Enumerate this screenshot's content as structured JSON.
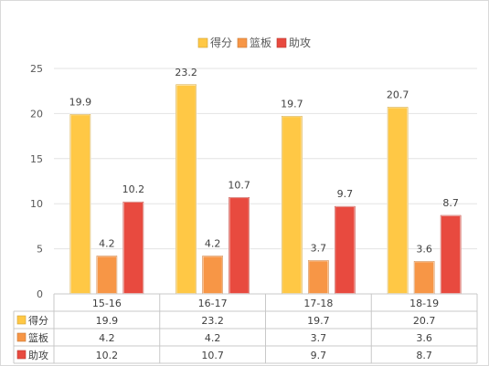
{
  "chart_data": {
    "type": "bar",
    "title": "",
    "xlabel": "",
    "ylabel": "",
    "ylim": [
      0,
      25
    ],
    "yticks": [
      0,
      5,
      10,
      15,
      20,
      25
    ],
    "grid": true,
    "legend_position": "top",
    "categories": [
      "15-16",
      "16-17",
      "17-18",
      "18-19"
    ],
    "series": [
      {
        "name": "得分",
        "color": "#ffc845",
        "values": [
          19.9,
          23.2,
          19.7,
          20.7
        ]
      },
      {
        "name": "篮板",
        "color": "#f79646",
        "values": [
          4.2,
          4.2,
          3.7,
          3.6
        ]
      },
      {
        "name": "助攻",
        "color": "#e84a3f",
        "values": [
          10.2,
          10.7,
          9.7,
          8.7
        ]
      }
    ],
    "data_table": true
  }
}
